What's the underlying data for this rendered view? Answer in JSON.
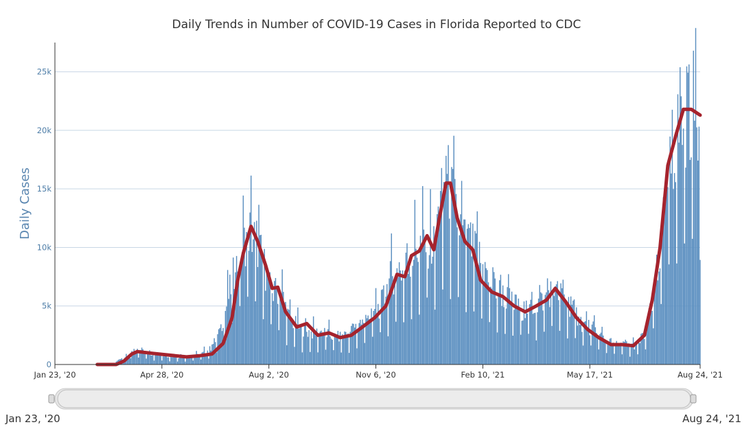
{
  "chart_data": {
    "type": "bar",
    "title": "Daily Trends in Number of COVID-19 Cases in Florida Reported to CDC",
    "ylabel": "Daily Cases",
    "xlabel": "",
    "ylim": [
      0,
      27500
    ],
    "grid": true,
    "x_range": [
      "2020-01-23",
      "2021-08-24"
    ],
    "x_ticks": [
      {
        "date": "2020-01-23",
        "label": "Jan 23, '20"
      },
      {
        "date": "2020-04-28",
        "label": "Apr 28, '20"
      },
      {
        "date": "2020-08-02",
        "label": "Aug 2, '20"
      },
      {
        "date": "2020-11-06",
        "label": "Nov 6, '20"
      },
      {
        "date": "2021-02-10",
        "label": "Feb 10, '21"
      },
      {
        "date": "2021-05-17",
        "label": "May 17, '21"
      },
      {
        "date": "2021-08-24",
        "label": "Aug 24, '21"
      }
    ],
    "y_ticks": [
      {
        "value": 0,
        "label": "0"
      },
      {
        "value": 5000,
        "label": "5k"
      },
      {
        "value": 10000,
        "label": "10k"
      },
      {
        "value": 15000,
        "label": "15k"
      },
      {
        "value": 20000,
        "label": "20k"
      },
      {
        "value": 25000,
        "label": "25k"
      }
    ],
    "series": [
      {
        "kind": "daily_bars",
        "color": "#5b8fc0",
        "points": [
          [
            "2020-03-01",
            0
          ],
          [
            "2020-03-15",
            100
          ],
          [
            "2020-03-25",
            600
          ],
          [
            "2020-04-02",
            1100
          ],
          [
            "2020-04-10",
            1100
          ],
          [
            "2020-04-20",
            900
          ],
          [
            "2020-05-01",
            800
          ],
          [
            "2020-05-10",
            650
          ],
          [
            "2020-05-20",
            700
          ],
          [
            "2020-06-01",
            800
          ],
          [
            "2020-06-10",
            1300
          ],
          [
            "2020-06-18",
            2500
          ],
          [
            "2020-06-25",
            5000
          ],
          [
            "2020-07-01",
            7500
          ],
          [
            "2020-07-08",
            9500
          ],
          [
            "2020-07-15",
            11500
          ],
          [
            "2020-07-22",
            10500
          ],
          [
            "2020-07-30",
            8000
          ],
          [
            "2020-08-05",
            6000
          ],
          [
            "2020-08-12",
            6500
          ],
          [
            "2020-08-20",
            4000
          ],
          [
            "2020-08-30",
            3000
          ],
          [
            "2020-09-10",
            2700
          ],
          [
            "2020-09-20",
            2700
          ],
          [
            "2020-10-01",
            2300
          ],
          [
            "2020-10-10",
            2500
          ],
          [
            "2020-10-20",
            3200
          ],
          [
            "2020-11-01",
            4200
          ],
          [
            "2020-11-10",
            5000
          ],
          [
            "2020-11-20",
            7500
          ],
          [
            "2020-12-01",
            8000
          ],
          [
            "2020-12-10",
            9500
          ],
          [
            "2020-12-20",
            10500
          ],
          [
            "2020-12-28",
            10000
          ],
          [
            "2021-01-05",
            14500
          ],
          [
            "2021-01-10",
            15500
          ],
          [
            "2021-01-18",
            12500
          ],
          [
            "2021-01-25",
            10500
          ],
          [
            "2021-02-05",
            9500
          ],
          [
            "2021-02-15",
            7200
          ],
          [
            "2021-02-25",
            6200
          ],
          [
            "2021-03-05",
            5500
          ],
          [
            "2021-03-15",
            4700
          ],
          [
            "2021-03-25",
            4800
          ],
          [
            "2021-04-05",
            5500
          ],
          [
            "2021-04-12",
            6300
          ],
          [
            "2021-04-20",
            6000
          ],
          [
            "2021-04-30",
            5000
          ],
          [
            "2021-05-10",
            3500
          ],
          [
            "2021-05-20",
            3000
          ],
          [
            "2021-05-30",
            2200
          ],
          [
            "2021-06-08",
            1700
          ],
          [
            "2021-06-18",
            1700
          ],
          [
            "2021-06-28",
            1600
          ],
          [
            "2021-07-05",
            2500
          ],
          [
            "2021-07-12",
            5000
          ],
          [
            "2021-07-20",
            10000
          ],
          [
            "2021-07-27",
            16000
          ],
          [
            "2021-08-03",
            19500
          ],
          [
            "2021-08-10",
            21000
          ],
          [
            "2021-08-17",
            22000
          ],
          [
            "2021-08-24",
            21500
          ]
        ]
      },
      {
        "kind": "7_day_average",
        "color": "#a5232d",
        "points": [
          [
            "2020-03-01",
            0
          ],
          [
            "2020-03-18",
            0
          ],
          [
            "2020-03-25",
            300
          ],
          [
            "2020-04-01",
            900
          ],
          [
            "2020-04-06",
            1100
          ],
          [
            "2020-04-20",
            950
          ],
          [
            "2020-05-05",
            800
          ],
          [
            "2020-05-20",
            650
          ],
          [
            "2020-06-01",
            750
          ],
          [
            "2020-06-12",
            900
          ],
          [
            "2020-06-22",
            1800
          ],
          [
            "2020-06-30",
            4000
          ],
          [
            "2020-07-05",
            7200
          ],
          [
            "2020-07-10",
            9500
          ],
          [
            "2020-07-17",
            11800
          ],
          [
            "2020-07-23",
            10500
          ],
          [
            "2020-07-30",
            8500
          ],
          [
            "2020-08-05",
            6500
          ],
          [
            "2020-08-10",
            6600
          ],
          [
            "2020-08-17",
            4500
          ],
          [
            "2020-08-27",
            3200
          ],
          [
            "2020-09-05",
            3500
          ],
          [
            "2020-09-15",
            2500
          ],
          [
            "2020-09-25",
            2700
          ],
          [
            "2020-10-05",
            2300
          ],
          [
            "2020-10-15",
            2500
          ],
          [
            "2020-10-25",
            3200
          ],
          [
            "2020-11-05",
            4000
          ],
          [
            "2020-11-15",
            5000
          ],
          [
            "2020-11-25",
            7700
          ],
          [
            "2020-12-02",
            7500
          ],
          [
            "2020-12-08",
            9300
          ],
          [
            "2020-12-15",
            9700
          ],
          [
            "2020-12-22",
            11000
          ],
          [
            "2020-12-28",
            9800
          ],
          [
            "2021-01-02",
            12500
          ],
          [
            "2021-01-08",
            15500
          ],
          [
            "2021-01-12",
            15500
          ],
          [
            "2021-01-18",
            12500
          ],
          [
            "2021-01-25",
            10500
          ],
          [
            "2021-02-01",
            9800
          ],
          [
            "2021-02-08",
            7200
          ],
          [
            "2021-02-18",
            6200
          ],
          [
            "2021-02-28",
            5800
          ],
          [
            "2021-03-10",
            5000
          ],
          [
            "2021-03-20",
            4500
          ],
          [
            "2021-03-30",
            5000
          ],
          [
            "2021-04-08",
            5500
          ],
          [
            "2021-04-16",
            6500
          ],
          [
            "2021-04-25",
            5400
          ],
          [
            "2021-05-05",
            4000
          ],
          [
            "2021-05-15",
            3000
          ],
          [
            "2021-05-25",
            2300
          ],
          [
            "2021-06-05",
            1700
          ],
          [
            "2021-06-15",
            1700
          ],
          [
            "2021-06-25",
            1600
          ],
          [
            "2021-07-05",
            2500
          ],
          [
            "2021-07-12",
            5500
          ],
          [
            "2021-07-19",
            10000
          ],
          [
            "2021-07-26",
            17000
          ],
          [
            "2021-08-02",
            19500
          ],
          [
            "2021-08-09",
            21800
          ],
          [
            "2021-08-16",
            21800
          ],
          [
            "2021-08-24",
            21300
          ]
        ]
      }
    ]
  },
  "navigator": {
    "start_label": "Jan 23, '20",
    "end_label": "Aug 24, '21"
  }
}
